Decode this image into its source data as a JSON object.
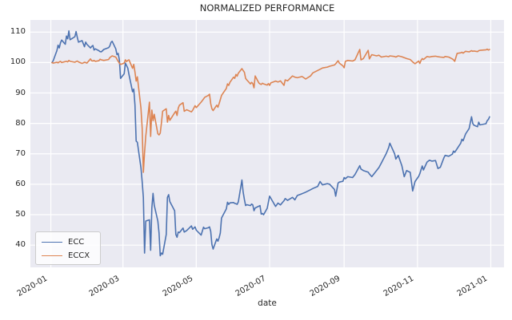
{
  "title": "NORMALIZED PERFORMANCE",
  "xlabel": "date",
  "colors": {
    "ecc_line": "#4c72b0",
    "eccx_line": "#dd8452",
    "plot_background": "#eaeaf2",
    "gridline": "#ffffff",
    "text": "#262626",
    "legend_border": "#cccccc"
  },
  "legend": {
    "items": [
      {
        "label": "ECC",
        "color": "#4c72b0"
      },
      {
        "label": "ECCX",
        "color": "#dd8452"
      }
    ]
  },
  "chart_data": {
    "type": "line",
    "title": "NORMALIZED PERFORMANCE",
    "xlabel": "date",
    "ylabel": "",
    "grid": true,
    "legend_position": "lower left",
    "background": "#eaeaf2",
    "ylim": [
      32.7,
      114.0
    ],
    "xlim_days": [
      -17,
      377
    ],
    "y_ticks": [
      40,
      50,
      60,
      70,
      80,
      90,
      100,
      110
    ],
    "x_ticks": [
      {
        "label": "2020-01",
        "date": "2020-01-01"
      },
      {
        "label": "2020-03",
        "date": "2020-03-01"
      },
      {
        "label": "2020-05",
        "date": "2020-05-01"
      },
      {
        "label": "2020-07",
        "date": "2020-07-01"
      },
      {
        "label": "2020-09",
        "date": "2020-09-01"
      },
      {
        "label": "2020-11",
        "date": "2020-11-01"
      },
      {
        "label": "2021-01",
        "date": "2021-01-01"
      }
    ],
    "x": [
      "2020-01-02",
      "2020-01-03",
      "2020-01-06",
      "2020-01-07",
      "2020-01-08",
      "2020-01-09",
      "2020-01-10",
      "2020-01-13",
      "2020-01-14",
      "2020-01-15",
      "2020-01-16",
      "2020-01-17",
      "2020-01-21",
      "2020-01-22",
      "2020-01-23",
      "2020-01-24",
      "2020-01-27",
      "2020-01-28",
      "2020-01-29",
      "2020-01-30",
      "2020-01-31",
      "2020-02-03",
      "2020-02-04",
      "2020-02-05",
      "2020-02-06",
      "2020-02-07",
      "2020-02-10",
      "2020-02-11",
      "2020-02-12",
      "2020-02-13",
      "2020-02-14",
      "2020-02-18",
      "2020-02-19",
      "2020-02-20",
      "2020-02-21",
      "2020-02-24",
      "2020-02-25",
      "2020-02-26",
      "2020-02-27",
      "2020-02-28",
      "2020-03-02",
      "2020-03-03",
      "2020-03-04",
      "2020-03-05",
      "2020-03-06",
      "2020-03-09",
      "2020-03-10",
      "2020-03-11",
      "2020-03-12",
      "2020-03-13",
      "2020-03-16",
      "2020-03-17",
      "2020-03-18",
      "2020-03-19",
      "2020-03-20",
      "2020-03-23",
      "2020-03-24",
      "2020-03-25",
      "2020-03-26",
      "2020-03-27",
      "2020-03-30",
      "2020-03-31",
      "2020-04-01",
      "2020-04-02",
      "2020-04-03",
      "2020-04-06",
      "2020-04-07",
      "2020-04-08",
      "2020-04-09",
      "2020-04-13",
      "2020-04-14",
      "2020-04-15",
      "2020-04-16",
      "2020-04-17",
      "2020-04-20",
      "2020-04-21",
      "2020-04-23",
      "2020-04-27",
      "2020-04-28",
      "2020-04-30",
      "2020-05-01",
      "2020-05-05",
      "2020-05-07",
      "2020-05-08",
      "2020-05-11",
      "2020-05-12",
      "2020-05-13",
      "2020-05-14",
      "2020-05-15",
      "2020-05-18",
      "2020-05-19",
      "2020-05-20",
      "2020-05-21",
      "2020-05-22",
      "2020-05-26",
      "2020-05-27",
      "2020-05-28",
      "2020-05-29",
      "2020-06-01",
      "2020-06-02",
      "2020-06-03",
      "2020-06-04",
      "2020-06-05",
      "2020-06-08",
      "2020-06-09",
      "2020-06-10",
      "2020-06-11",
      "2020-06-12",
      "2020-06-15",
      "2020-06-16",
      "2020-06-17",
      "2020-06-18",
      "2020-06-19",
      "2020-06-22",
      "2020-06-23",
      "2020-06-24",
      "2020-06-25",
      "2020-06-26",
      "2020-06-29",
      "2020-06-30",
      "2020-07-01",
      "2020-07-02",
      "2020-07-06",
      "2020-07-08",
      "2020-07-10",
      "2020-07-13",
      "2020-07-14",
      "2020-07-16",
      "2020-07-20",
      "2020-07-22",
      "2020-07-24",
      "2020-07-28",
      "2020-07-31",
      "2020-08-04",
      "2020-08-06",
      "2020-08-10",
      "2020-08-12",
      "2020-08-14",
      "2020-08-18",
      "2020-08-20",
      "2020-08-24",
      "2020-08-25",
      "2020-08-27",
      "2020-08-28",
      "2020-08-31",
      "2020-09-01",
      "2020-09-02",
      "2020-09-04",
      "2020-09-08",
      "2020-09-10",
      "2020-09-14",
      "2020-09-15",
      "2020-09-17",
      "2020-09-21",
      "2020-09-22",
      "2020-09-24",
      "2020-09-28",
      "2020-09-30",
      "2020-10-02",
      "2020-10-06",
      "2020-10-08",
      "2020-10-09",
      "2020-10-13",
      "2020-10-14",
      "2020-10-16",
      "2020-10-19",
      "2020-10-21",
      "2020-10-23",
      "2020-10-26",
      "2020-10-28",
      "2020-10-30",
      "2020-11-02",
      "2020-11-03",
      "2020-11-04",
      "2020-11-05",
      "2020-11-06",
      "2020-11-09",
      "2020-11-11",
      "2020-11-13",
      "2020-11-16",
      "2020-11-18",
      "2020-11-20",
      "2020-11-23",
      "2020-11-24",
      "2020-11-27",
      "2020-11-30",
      "2020-12-01",
      "2020-12-02",
      "2020-12-04",
      "2020-12-07",
      "2020-12-08",
      "2020-12-09",
      "2020-12-11",
      "2020-12-14",
      "2020-12-16",
      "2020-12-17",
      "2020-12-18",
      "2020-12-21",
      "2020-12-22",
      "2020-12-23",
      "2020-12-28",
      "2020-12-29",
      "2020-12-30",
      "2020-12-31"
    ],
    "series": [
      {
        "name": "ECC",
        "color": "#4c72b0",
        "values": [
          100.0,
          100.6,
          103.9,
          105.7,
          104.8,
          106.5,
          107.4,
          106.0,
          108.7,
          107.8,
          110.4,
          107.5,
          108.5,
          110.2,
          108.3,
          106.7,
          107.2,
          106.2,
          105.2,
          106.7,
          106.0,
          104.8,
          105.3,
          105.6,
          104.1,
          104.5,
          103.9,
          103.6,
          103.5,
          103.9,
          104.3,
          104.9,
          105.4,
          106.6,
          107.0,
          104.5,
          102.6,
          103.0,
          100.9,
          94.8,
          96.3,
          99.8,
          99.0,
          98.2,
          96.1,
          90.4,
          91.3,
          86.1,
          74.2,
          73.8,
          65.4,
          60.9,
          55.7,
          37.4,
          47.9,
          48.3,
          38.3,
          52.2,
          57.0,
          53.1,
          47.9,
          44.0,
          36.5,
          37.4,
          37.0,
          43.5,
          55.7,
          56.6,
          54.3,
          51.3,
          43.5,
          42.6,
          44.3,
          44.1,
          45.6,
          44.3,
          44.8,
          46.3,
          45.2,
          46.0,
          44.9,
          43.3,
          45.9,
          45.4,
          45.7,
          46.0,
          44.5,
          40.2,
          38.7,
          42.0,
          41.3,
          42.4,
          44.0,
          48.9,
          51.9,
          54.1,
          53.4,
          53.9,
          54.0,
          53.7,
          53.6,
          53.4,
          54.2,
          61.4,
          57.5,
          55.0,
          53.0,
          53.3,
          53.0,
          53.5,
          53.2,
          51.3,
          52.2,
          52.8,
          53.0,
          50.2,
          50.4,
          50.0,
          52.1,
          54.1,
          56.1,
          55.4,
          52.7,
          53.8,
          53.2,
          54.6,
          55.3,
          54.7,
          55.7,
          54.9,
          56.3,
          56.9,
          57.4,
          58.2,
          58.6,
          59.3,
          60.9,
          59.8,
          60.2,
          60.0,
          58.3,
          56.1,
          60.4,
          60.7,
          61.0,
          62.2,
          61.8,
          62.5,
          62.2,
          63.2,
          66.1,
          65.0,
          64.5,
          64.0,
          63.4,
          62.5,
          64.5,
          65.5,
          67.0,
          70.1,
          72.0,
          73.5,
          70.0,
          68.3,
          69.5,
          66.1,
          62.5,
          64.5,
          63.9,
          57.8,
          60.9,
          62.6,
          63.5,
          64.8,
          66.0,
          64.7,
          67.3,
          67.9,
          67.6,
          67.8,
          65.2,
          65.6,
          68.7,
          69.5,
          69.2,
          69.9,
          70.9,
          70.5,
          71.7,
          73.5,
          74.8,
          74.3,
          76.5,
          78.3,
          82.2,
          80.0,
          79.4,
          78.9,
          80.4,
          79.5,
          79.9,
          80.9,
          81.3,
          82.2
        ]
      },
      {
        "name": "ECCX",
        "color": "#dd8452",
        "values": [
          100.0,
          99.8,
          100.1,
          99.9,
          100.2,
          100.4,
          100.0,
          100.3,
          100.4,
          100.2,
          100.7,
          100.4,
          100.1,
          100.3,
          100.5,
          100.2,
          99.7,
          99.9,
          100.1,
          100.0,
          99.8,
          101.2,
          100.6,
          100.5,
          100.7,
          100.4,
          100.6,
          101.1,
          100.9,
          100.8,
          100.7,
          101.0,
          101.6,
          101.9,
          102.2,
          101.8,
          101.1,
          100.4,
          99.8,
          99.4,
          99.8,
          100.9,
          100.3,
          100.7,
          100.9,
          98.1,
          99.4,
          96.9,
          93.9,
          95.3,
          85.0,
          78.5,
          63.9,
          70.5,
          75.8,
          87.0,
          75.7,
          84.4,
          80.9,
          83.0,
          76.6,
          76.2,
          76.8,
          80.2,
          84.0,
          84.8,
          80.4,
          82.6,
          81.0,
          83.5,
          84.0,
          82.6,
          85.0,
          86.0,
          86.8,
          84.0,
          84.5,
          83.8,
          84.3,
          85.8,
          85.2,
          87.0,
          88.0,
          88.6,
          89.2,
          89.6,
          86.5,
          84.8,
          84.2,
          86.0,
          85.3,
          86.5,
          87.8,
          89.2,
          91.5,
          93.0,
          92.5,
          93.5,
          95.2,
          94.8,
          96.1,
          95.5,
          96.5,
          98.0,
          97.4,
          96.8,
          94.8,
          94.3,
          93.0,
          93.5,
          93.1,
          91.7,
          95.6,
          93.3,
          93.0,
          92.8,
          93.2,
          93.0,
          92.6,
          93.1,
          92.5,
          93.3,
          93.9,
          93.6,
          94.0,
          92.5,
          94.3,
          94.0,
          95.6,
          95.2,
          95.0,
          95.4,
          94.6,
          95.6,
          96.6,
          97.4,
          97.8,
          98.2,
          98.5,
          98.8,
          99.2,
          99.6,
          100.6,
          99.8,
          98.9,
          98.3,
          100.4,
          100.7,
          100.5,
          100.9,
          104.3,
          100.9,
          101.3,
          104.0,
          101.2,
          102.6,
          102.2,
          102.4,
          101.8,
          102.1,
          101.9,
          102.2,
          102.0,
          101.8,
          102.2,
          101.9,
          101.6,
          101.3,
          101.0,
          100.2,
          99.6,
          100.5,
          99.7,
          100.7,
          101.3,
          101.0,
          102.0,
          101.8,
          102.0,
          102.1,
          101.9,
          101.8,
          101.7,
          102.0,
          101.8,
          101.2,
          100.9,
          100.4,
          103.0,
          103.2,
          103.4,
          103.1,
          103.7,
          103.5,
          103.9,
          103.7,
          103.8,
          103.6,
          103.9,
          104.0,
          104.2,
          104.4,
          104.1,
          104.3
        ]
      }
    ]
  }
}
